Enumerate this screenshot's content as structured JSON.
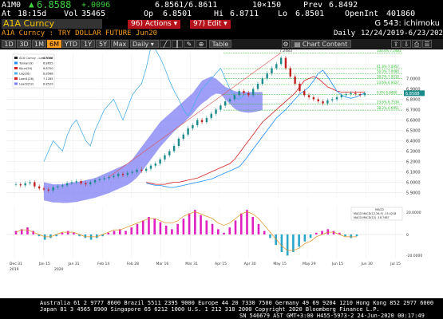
{
  "quote": {
    "ticker": "A1M0",
    "last": "6.8588",
    "change": "+.0096",
    "change_arrow": "▲",
    "bid_ask": "6.8561/6.8611",
    "size": "10×150",
    "prev_label": "Prev",
    "prev": "6.8492",
    "at_label": "At",
    "time": "18:15d",
    "vol_label": "Vol",
    "vol": "35465",
    "op_label": "Op",
    "op": "6.8501",
    "hi_label": "Hi",
    "hi": "6.8711",
    "lo_label": "Lo",
    "lo": "6.8501",
    "oi_label": "OpenInt",
    "oi": "401860"
  },
  "titlebar": {
    "security": "A1A Curncy",
    "actions_num": "96)",
    "actions": "Actions",
    "edit_num": "97)",
    "edit": "Edit",
    "page": "G 543: ichimoku"
  },
  "secrow": {
    "description": "A1A Curncy : TRY DOLLAR FUTURE Jun20",
    "period": "Daily",
    "range": "12/24/2019-6/23/2020"
  },
  "toolbar": {
    "buttons": [
      "1D",
      "3D",
      "1M",
      "6M",
      "YTD",
      "1Y",
      "5Y",
      "Max"
    ],
    "active": "6M",
    "interval": "Daily",
    "table": "Table",
    "chart_content": "Chart Content"
  },
  "chart_data": {
    "type": "line",
    "x_ticks": [
      "Dec 31",
      "Jan 15",
      "Jan 31",
      "Feb 14",
      "Feb 28",
      "Mar 16",
      "Mar 31",
      "Apr 15",
      "Apr 30",
      "May 15",
      "May 29",
      "Jun 15",
      "Jun 30",
      "Jul 15"
    ],
    "year_labels": [
      "2019",
      "2020"
    ],
    "y_ticks": [
      "7.0000",
      "6.9000",
      "6.8000",
      "6.7000",
      "6.6000",
      "6.5000",
      "6.4000",
      "6.3000",
      "6.2000",
      "6.1000",
      "6.0000",
      "5.9000"
    ],
    "y_range": [
      5.85,
      7.25
    ],
    "current_price_label": "6.8588",
    "fib_labels": [
      "100.0% 7.2483",
      "61.8% 7.0957",
      "50.0% 7.0484",
      "38.2% 7.0010",
      "23.6% 6.9427",
      "0.0% 6.8480",
      "23.6% 6.7534",
      "38.2% 6.6951"
    ],
    "legend_entries": [
      "A1A Curncy - Last Price",
      "Tenkan(9)",
      "Kijun(26)",
      "Lag(26)",
      "Lead1(26)",
      "Lead2(52)"
    ],
    "legend_values": [
      "6.8588",
      "6.8655",
      "6.8700",
      "6.8588",
      "7.1285",
      "6.8529"
    ],
    "peak_label": "7.2483",
    "close": [
      5.98,
      5.97,
      5.99,
      6.0,
      5.96,
      5.94,
      5.93,
      5.92,
      5.95,
      5.96,
      5.97,
      5.99,
      6.0,
      6.01,
      5.99,
      5.98,
      6.0,
      6.02,
      6.03,
      6.04,
      6.05,
      6.06,
      6.08,
      6.07,
      6.09,
      6.1,
      6.12,
      6.11,
      6.13,
      6.16,
      6.18,
      6.22,
      6.26,
      6.3,
      6.35,
      6.42,
      6.46,
      6.52,
      6.55,
      6.6,
      6.58,
      6.62,
      6.66,
      6.7,
      6.74,
      6.78,
      6.8,
      6.84,
      6.88,
      6.86,
      6.84,
      6.9,
      6.95,
      7.0,
      7.05,
      7.1,
      7.14,
      7.2,
      7.1,
      7.02,
      6.95,
      6.88,
      6.84,
      6.82,
      6.8,
      6.78,
      6.76,
      6.79,
      6.8,
      6.82,
      6.84,
      6.85,
      6.86,
      6.85,
      6.84,
      6.86
    ],
    "tenkan": [
      5.99,
      5.98,
      5.97,
      5.97,
      5.96,
      5.95,
      5.95,
      5.96,
      5.97,
      5.98,
      5.99,
      6.0,
      6.01,
      6.02,
      6.03,
      6.05,
      6.07,
      6.09,
      6.11,
      6.13,
      6.15,
      6.2,
      6.26,
      6.32,
      6.38,
      6.44,
      6.5,
      6.56,
      6.62,
      6.66,
      6.7,
      6.75,
      6.8,
      6.85,
      6.88,
      6.92,
      6.98,
      7.05,
      7.08,
      7.02,
      6.95,
      6.88,
      6.84,
      6.82,
      6.81,
      6.82,
      6.84,
      6.86
    ],
    "kijun": [
      6.0,
      5.99,
      5.98,
      5.98,
      5.98,
      5.99,
      6.0,
      6.0,
      6.01,
      6.02,
      6.03,
      6.04,
      6.06,
      6.08,
      6.1,
      6.12,
      6.14,
      6.16,
      6.18,
      6.22,
      6.28,
      6.34,
      6.4,
      6.46,
      6.52,
      6.58,
      6.62,
      6.66,
      6.7,
      6.74,
      6.78,
      6.82,
      6.86,
      6.92,
      6.98,
      7.0,
      7.02,
      7.0,
      6.96,
      6.92,
      6.9,
      6.88,
      6.87,
      6.87,
      6.87,
      6.87,
      6.87,
      6.87
    ],
    "lag": [
      6.2,
      6.3,
      6.4,
      6.35,
      6.3,
      6.45,
      6.55,
      6.6,
      6.5,
      6.4,
      6.35,
      6.5,
      6.6,
      6.7,
      6.75,
      6.8,
      6.7,
      6.6,
      6.72,
      6.84,
      6.9,
      6.95,
      7.1,
      7.3,
      7.28,
      7.2,
      7.1,
      6.98,
      6.88,
      6.8,
      6.7,
      6.64,
      6.72,
      6.82,
      6.9,
      6.95,
      7.0,
      7.05,
      7.1,
      7.0,
      6.9,
      6.82,
      6.8,
      6.84,
      6.86
    ],
    "macd_title": "MACD",
    "macd_legend": [
      "MACD MACD(12,26,9) -15.4218",
      "MACD MACD(12) -18.7487"
    ],
    "macd_hist": [
      2,
      3,
      4,
      2,
      -1,
      -3,
      -2,
      -1,
      1,
      2,
      1,
      -1,
      -2,
      -3,
      -2,
      -1,
      1,
      2,
      3,
      2,
      4,
      6,
      8,
      10,
      9,
      7,
      5,
      3,
      6,
      9,
      12,
      14,
      11,
      8,
      6,
      3,
      1,
      4,
      8,
      12,
      14,
      10,
      6,
      2,
      -2,
      -6,
      -10,
      -12,
      -10,
      -7,
      -4,
      -2,
      1,
      2,
      3,
      2,
      1,
      -1,
      -2,
      -1
    ],
    "macd_line": [
      1,
      2,
      2,
      1,
      0,
      -1,
      -1,
      0,
      1,
      1,
      1,
      0,
      -1,
      -1,
      -1,
      0,
      1,
      2,
      2,
      3,
      4,
      5,
      6,
      7,
      7,
      6,
      5,
      5,
      6,
      8,
      9,
      10,
      9,
      8,
      7,
      5,
      4,
      5,
      7,
      9,
      10,
      9,
      7,
      4,
      1,
      -2,
      -5,
      -7,
      -7,
      -6,
      -4,
      -3,
      -1,
      0,
      1,
      1,
      0,
      -1,
      -1,
      -1
    ]
  },
  "footer": {
    "line1": "Australia 61 2 9777 8600 Brazil 5511 2395 9000 Europe 44 20 7330 7500 Germany 49 69 9204 1210 Hong Kong 852 2977 6000",
    "line2": "Japan 81 3 4565 8900       Singapore 65 6212 1000      U.S. 1 212 318 2000          Copyright 2020 Bloomberg Finance L.P.",
    "line3": "SN 546679 AST  GMT+3:00 H455-5973-2 24-Jun-2020 00:17:49"
  },
  "colors": {
    "cloud": "#7f7ff5",
    "price": "#222222",
    "tenkan": "#1e8fff",
    "kijun": "#d42020",
    "lag": "#4aaee8",
    "bars_up": "#1a8a8a",
    "bars_down": "#c02020",
    "macd_hist": "#e020c0",
    "macd_line": "#e09020",
    "fib_line": "#2ec02e"
  }
}
